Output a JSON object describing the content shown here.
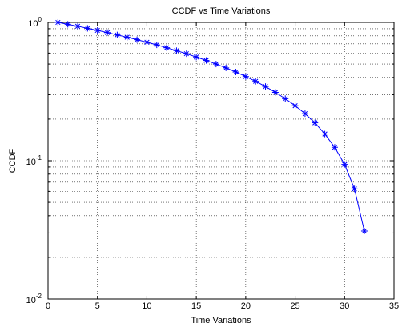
{
  "chart_data": {
    "type": "line",
    "title": "CCDF vs Time Variations",
    "xlabel": "Time Variations",
    "ylabel": "CCDF",
    "xlim": [
      0,
      35
    ],
    "ylim": [
      0.01,
      1
    ],
    "yscale": "log",
    "grid": true,
    "x_ticks": [
      0,
      5,
      10,
      15,
      20,
      25,
      30,
      35
    ],
    "x_tick_labels": [
      "0",
      "5",
      "10",
      "15",
      "20",
      "25",
      "30",
      "35"
    ],
    "y_ticks": [
      0.01,
      0.1,
      1
    ],
    "y_tick_labels": [
      {
        "base": "10",
        "exp": "-2"
      },
      {
        "base": "10",
        "exp": "-1"
      },
      {
        "base": "10",
        "exp": "0"
      }
    ],
    "series": [
      {
        "color": "#0000ff",
        "marker": "star",
        "x": [
          1,
          2,
          3,
          4,
          5,
          6,
          7,
          8,
          9,
          10,
          11,
          12,
          13,
          14,
          15,
          16,
          17,
          18,
          19,
          20,
          21,
          22,
          23,
          24,
          25,
          26,
          27,
          28,
          29,
          30,
          31,
          32
        ],
        "y": [
          1.0,
          0.969,
          0.938,
          0.906,
          0.875,
          0.844,
          0.812,
          0.781,
          0.75,
          0.719,
          0.688,
          0.656,
          0.625,
          0.594,
          0.562,
          0.531,
          0.5,
          0.469,
          0.438,
          0.406,
          0.375,
          0.344,
          0.312,
          0.281,
          0.25,
          0.219,
          0.188,
          0.156,
          0.125,
          0.094,
          0.0625,
          0.031
        ]
      }
    ]
  }
}
